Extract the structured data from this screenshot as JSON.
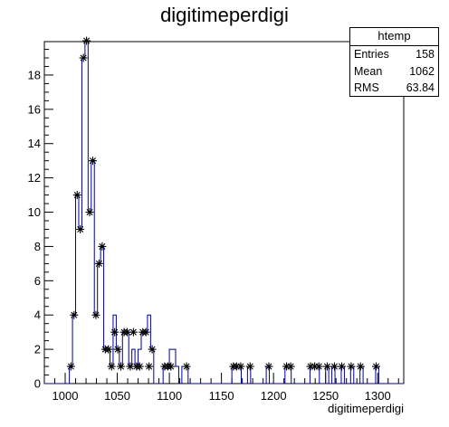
{
  "title": "digitimeperdigi",
  "statbox": {
    "title": "htemp",
    "rows": [
      {
        "label": "Entries",
        "value": "158"
      },
      {
        "label": "Mean",
        "value": "1062"
      },
      {
        "label": "RMS",
        "value": "63.84"
      }
    ]
  },
  "colors": {
    "histogram_line": "#000099",
    "marker": "#000000",
    "axis": "#000000"
  },
  "chart_data": {
    "type": "histogram",
    "xlabel": "digitimeperdigi",
    "ylabel": "",
    "xlim": [
      980,
      1325
    ],
    "ylim": [
      0,
      19.95
    ],
    "bin_width": 3,
    "x_ticks": [
      1000,
      1050,
      1100,
      1150,
      1200,
      1250,
      1300
    ],
    "y_ticks": [
      0,
      2,
      4,
      6,
      8,
      10,
      12,
      14,
      16,
      18
    ],
    "bins": [
      [
        1004,
        1
      ],
      [
        1007,
        4
      ],
      [
        1010,
        11
      ],
      [
        1013,
        9
      ],
      [
        1016,
        19
      ],
      [
        1019,
        20
      ],
      [
        1022,
        10
      ],
      [
        1025,
        13
      ],
      [
        1028,
        4
      ],
      [
        1031,
        7
      ],
      [
        1034,
        8
      ],
      [
        1037,
        2
      ],
      [
        1040,
        2
      ],
      [
        1043,
        1
      ],
      [
        1046,
        3
      ],
      [
        1049,
        2
      ],
      [
        1052,
        1
      ],
      [
        1055,
        3
      ],
      [
        1058,
        3
      ],
      [
        1061,
        1
      ],
      [
        1064,
        3
      ],
      [
        1067,
        1
      ],
      [
        1070,
        1
      ],
      [
        1073,
        3
      ],
      [
        1076,
        3
      ],
      [
        1079,
        1
      ],
      [
        1082,
        2
      ],
      [
        1094,
        1
      ],
      [
        1097,
        1
      ],
      [
        1100,
        1
      ],
      [
        1115,
        1
      ],
      [
        1160,
        1
      ],
      [
        1163,
        1
      ],
      [
        1167,
        1
      ],
      [
        1176,
        1
      ],
      [
        1194,
        1
      ],
      [
        1211,
        1
      ],
      [
        1215,
        1
      ],
      [
        1234,
        1
      ],
      [
        1238,
        1
      ],
      [
        1242,
        1
      ],
      [
        1250,
        1
      ],
      [
        1257,
        1
      ],
      [
        1264,
        1
      ],
      [
        1273,
        1
      ],
      [
        1282,
        1
      ],
      [
        1297,
        1
      ]
    ],
    "extra_outline_bins": [
      [
        1046,
        4
      ],
      [
        1049,
        2
      ],
      [
        1064,
        2
      ],
      [
        1070,
        2
      ],
      [
        1079,
        4
      ],
      [
        1100,
        2
      ],
      [
        1103,
        2
      ],
      [
        1106,
        1
      ],
      [
        1112,
        1
      ]
    ],
    "legend_position": "top-right",
    "grid": false
  }
}
